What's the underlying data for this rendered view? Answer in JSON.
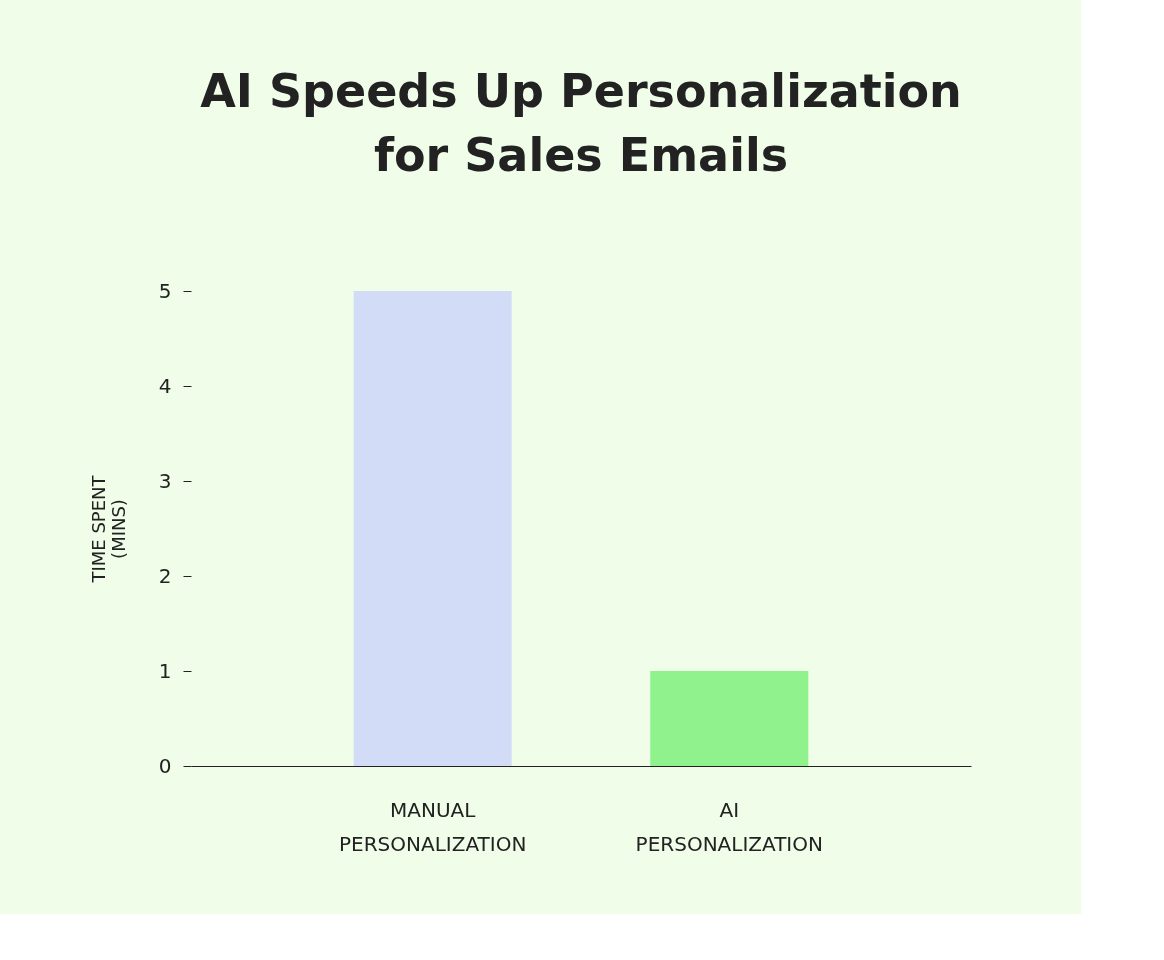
{
  "chart_data": {
    "type": "bar",
    "title": "AI Speeds Up Personalization\nfor Sales Emails",
    "categories": [
      "MANUAL\nPERSONALIZATION",
      "AI\nPERSONALIZATION"
    ],
    "values": [
      5,
      1
    ],
    "colors": [
      "#d3dcf7",
      "#8ff28d"
    ],
    "ylabel": "TIME SPENT\n(MINS)",
    "ylim": [
      0,
      5
    ],
    "yticks": [
      0,
      1,
      2,
      3,
      4,
      5
    ],
    "grid": false
  }
}
